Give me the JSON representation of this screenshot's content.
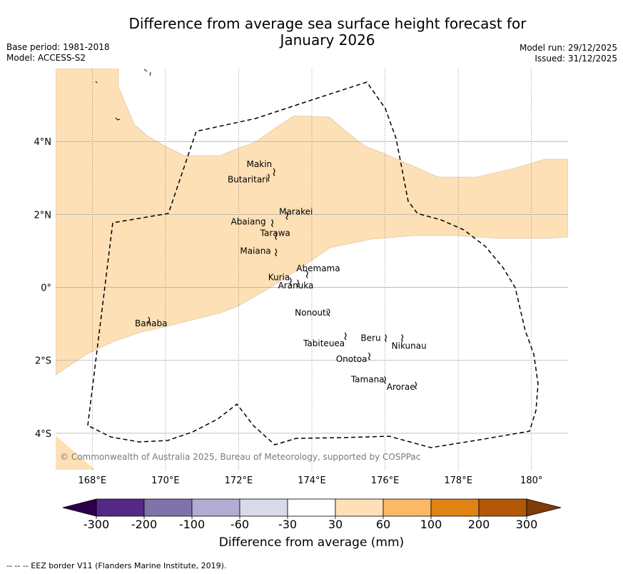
{
  "title": "Difference from average sea surface height forecast for January 2026",
  "title_line1": "Difference from average sea surface height forecast for",
  "title_line2": "January 2026",
  "meta_left": {
    "base_period": "Base period: 1981-2018",
    "model": "Model: ACCESS-S2"
  },
  "meta_right": {
    "model_run": "Model run: 29/12/2025",
    "issued": "Issued: 31/12/2025"
  },
  "map": {
    "lon_range": [
      167,
      181
    ],
    "lat_range": [
      -5,
      6
    ],
    "lon_labels": [
      "168°E",
      "170°E",
      "172°E",
      "174°E",
      "176°E",
      "178°E",
      "180°"
    ],
    "lat_labels": [
      "4°N",
      "2°N",
      "0°",
      "2°S",
      "4°S"
    ],
    "islands": [
      {
        "name": "Makin",
        "lon": 172.95,
        "lat": 3.2
      },
      {
        "name": "Butaritari",
        "lon": 172.8,
        "lat": 3.05
      },
      {
        "name": "Marakei",
        "lon": 173.3,
        "lat": 2.0
      },
      {
        "name": "Abaiang",
        "lon": 172.9,
        "lat": 1.8
      },
      {
        "name": "Tarawa",
        "lon": 173.0,
        "lat": 1.45
      },
      {
        "name": "Maiana",
        "lon": 173.0,
        "lat": 1.0
      },
      {
        "name": "Abemama",
        "lon": 173.85,
        "lat": 0.4
      },
      {
        "name": "Kuria",
        "lon": 173.4,
        "lat": 0.2
      },
      {
        "name": "Aranuka",
        "lon": 173.6,
        "lat": 0.15
      },
      {
        "name": "Nonouti",
        "lon": 174.45,
        "lat": -0.65
      },
      {
        "name": "Tabiteuea",
        "lon": 174.9,
        "lat": -1.3
      },
      {
        "name": "Beru",
        "lon": 176.0,
        "lat": -1.35
      },
      {
        "name": "Nikunau",
        "lon": 176.45,
        "lat": -1.35
      },
      {
        "name": "Onotoa",
        "lon": 175.55,
        "lat": -1.85
      },
      {
        "name": "Tamana",
        "lon": 175.98,
        "lat": -2.5
      },
      {
        "name": "Arorae",
        "lon": 176.82,
        "lat": -2.65
      },
      {
        "name": "Banaba",
        "lon": 169.53,
        "lat": -0.87
      }
    ],
    "copyright": "© Commonwealth of Australia 2025, Bureau of Meteorology, supported by COSPPac",
    "colors": {
      "land_fill": "#fde0b6",
      "grid": "#b0b0b0",
      "eez": "#000000"
    }
  },
  "colorbar": {
    "title": "Difference from average (mm)",
    "tick_labels": [
      "-300",
      "-200",
      "-100",
      "-60",
      "-30",
      "30",
      "60",
      "100",
      "200",
      "300"
    ],
    "bins": [
      {
        "range": "< -300",
        "color": "#2d004b"
      },
      {
        "range": "-300 to -200",
        "color": "#542788"
      },
      {
        "range": "-200 to -100",
        "color": "#8073ac"
      },
      {
        "range": "-100 to -60",
        "color": "#b2abd2"
      },
      {
        "range": "-60 to -30",
        "color": "#d8daeb"
      },
      {
        "range": "-30 to 30",
        "color": "#ffffff"
      },
      {
        "range": "30 to 60",
        "color": "#fee0b6"
      },
      {
        "range": "60 to 100",
        "color": "#fdb863"
      },
      {
        "range": "100 to 200",
        "color": "#e08214"
      },
      {
        "range": "200 to 300",
        "color": "#b35806"
      },
      {
        "range": "> 300",
        "color": "#7f3b08"
      }
    ]
  },
  "footnote": "--  --  -- EEZ border V11 (Flanders Marine Institute, 2019)."
}
